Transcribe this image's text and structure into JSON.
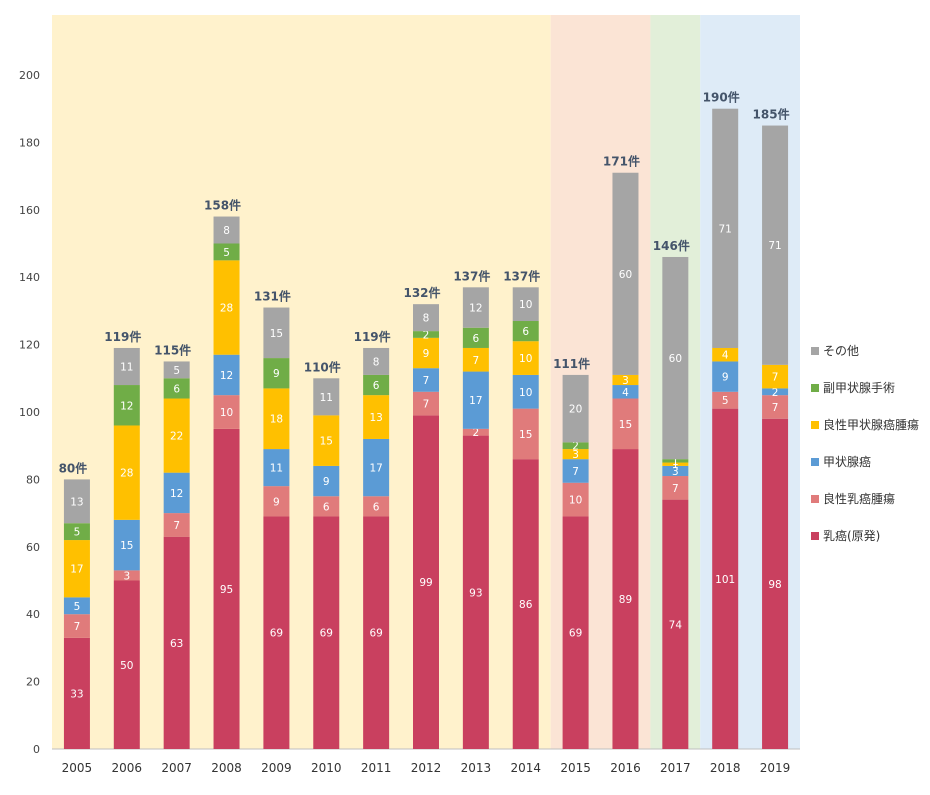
{
  "chart_data": {
    "type": "bar",
    "stacked": true,
    "ylim": [
      0,
      200
    ],
    "yticks": [
      0,
      20,
      40,
      60,
      80,
      100,
      120,
      140,
      160,
      180,
      200
    ],
    "categories": [
      "2005",
      "2006",
      "2007",
      "2008",
      "2009",
      "2010",
      "2011",
      "2012",
      "2013",
      "2014",
      "2015",
      "2016",
      "2017",
      "2018",
      "2019"
    ],
    "series": [
      {
        "name": "乳癌(原発)",
        "color": "#c9405f",
        "values": [
          33,
          50,
          63,
          95,
          69,
          69,
          69,
          99,
          93,
          86,
          69,
          89,
          74,
          101,
          98
        ]
      },
      {
        "name": "良性乳癌腫瘍",
        "color": "#e07b7b",
        "values": [
          7,
          3,
          7,
          10,
          9,
          6,
          6,
          7,
          2,
          15,
          10,
          15,
          7,
          5,
          7
        ]
      },
      {
        "name": "甲状腺癌",
        "color": "#5b9bd5",
        "values": [
          5,
          15,
          12,
          12,
          11,
          9,
          17,
          7,
          17,
          10,
          7,
          4,
          3,
          9,
          2
        ]
      },
      {
        "name": "良性甲状腺癌腫瘍",
        "color": "#ffc000",
        "values": [
          17,
          28,
          22,
          28,
          18,
          15,
          13,
          9,
          7,
          10,
          3,
          3,
          1,
          4,
          7
        ]
      },
      {
        "name": "副甲状腺手術",
        "color": "#70ad47",
        "values": [
          5,
          12,
          6,
          5,
          9,
          0,
          6,
          2,
          6,
          6,
          2,
          0,
          1,
          0,
          0
        ]
      },
      {
        "name": "その他",
        "color": "#a5a5a5",
        "values": [
          13,
          11,
          5,
          8,
          15,
          11,
          8,
          8,
          12,
          10,
          20,
          60,
          60,
          71,
          71
        ]
      }
    ],
    "totals": [
      "80件",
      "119件",
      "115件",
      "158件",
      "131件",
      "110件",
      "119件",
      "132件",
      "137件",
      "137件",
      "111件",
      "171件",
      "146件",
      "190件",
      "185件"
    ],
    "background_bands": [
      {
        "from_index": 0,
        "to_index": 9,
        "color": "#fff2cc"
      },
      {
        "from_index": 10,
        "to_index": 11,
        "color": "#fbe4d5"
      },
      {
        "from_index": 12,
        "to_index": 12,
        "color": "#e2efd9"
      },
      {
        "from_index": 13,
        "to_index": 14,
        "color": "#deebf7"
      }
    ],
    "legend_position": "right",
    "legend_order": [
      "その他",
      "副甲状腺手術",
      "良性甲状腺癌腫瘍",
      "甲状腺癌",
      "良性乳癌腫瘍",
      "乳癌(原発)"
    ],
    "grid": false
  }
}
